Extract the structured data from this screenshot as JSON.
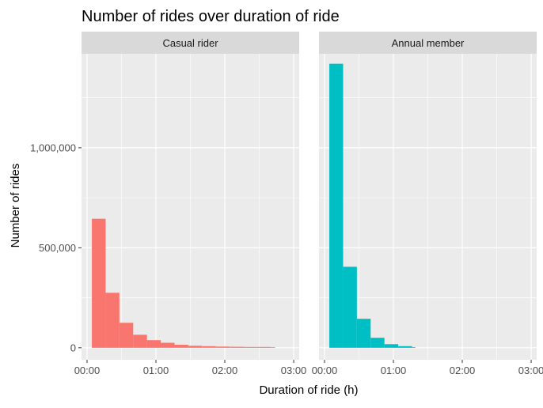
{
  "chart_data": {
    "type": "bar",
    "title": "Number of rides over duration of ride",
    "xlabel": "Duration of ride (h)",
    "ylabel": "Number of rides",
    "ylim": [
      -60000,
      1470000
    ],
    "xlim": [
      -0.08,
      3.08
    ],
    "x_ticks": [
      0,
      1,
      2,
      3
    ],
    "x_tick_labels": [
      "00:00",
      "01:00",
      "02:00",
      "03:00"
    ],
    "y_ticks": [
      0,
      500000,
      1000000
    ],
    "y_tick_labels": [
      "0",
      "500,000",
      "1,000,000"
    ],
    "bin_width_hours": 0.2,
    "panels": [
      {
        "name": "Casual rider",
        "color": "#F8766D",
        "bins": [
          {
            "x0": 0.07,
            "x1": 0.27,
            "value": 645000
          },
          {
            "x0": 0.27,
            "x1": 0.47,
            "value": 275000
          },
          {
            "x0": 0.47,
            "x1": 0.67,
            "value": 125000
          },
          {
            "x0": 0.67,
            "x1": 0.87,
            "value": 65000
          },
          {
            "x0": 0.87,
            "x1": 1.07,
            "value": 38000
          },
          {
            "x0": 1.07,
            "x1": 1.27,
            "value": 25000
          },
          {
            "x0": 1.27,
            "x1": 1.47,
            "value": 15000
          },
          {
            "x0": 1.47,
            "x1": 1.67,
            "value": 10000
          },
          {
            "x0": 1.67,
            "x1": 1.87,
            "value": 8000
          },
          {
            "x0": 1.87,
            "x1": 2.07,
            "value": 6000
          },
          {
            "x0": 2.07,
            "x1": 2.27,
            "value": 5000
          },
          {
            "x0": 2.27,
            "x1": 2.47,
            "value": 4000
          },
          {
            "x0": 2.47,
            "x1": 2.67,
            "value": 4000
          },
          {
            "x0": 2.67,
            "x1": 2.73,
            "value": 3000
          }
        ]
      },
      {
        "name": "Annual member",
        "color": "#00BFC4",
        "bins": [
          {
            "x0": 0.07,
            "x1": 0.27,
            "value": 1420000
          },
          {
            "x0": 0.27,
            "x1": 0.47,
            "value": 405000
          },
          {
            "x0": 0.47,
            "x1": 0.67,
            "value": 145000
          },
          {
            "x0": 0.67,
            "x1": 0.87,
            "value": 50000
          },
          {
            "x0": 0.87,
            "x1": 1.07,
            "value": 18000
          },
          {
            "x0": 1.07,
            "x1": 1.27,
            "value": 8000
          },
          {
            "x0": 1.27,
            "x1": 1.32,
            "value": 3000
          }
        ]
      }
    ]
  }
}
